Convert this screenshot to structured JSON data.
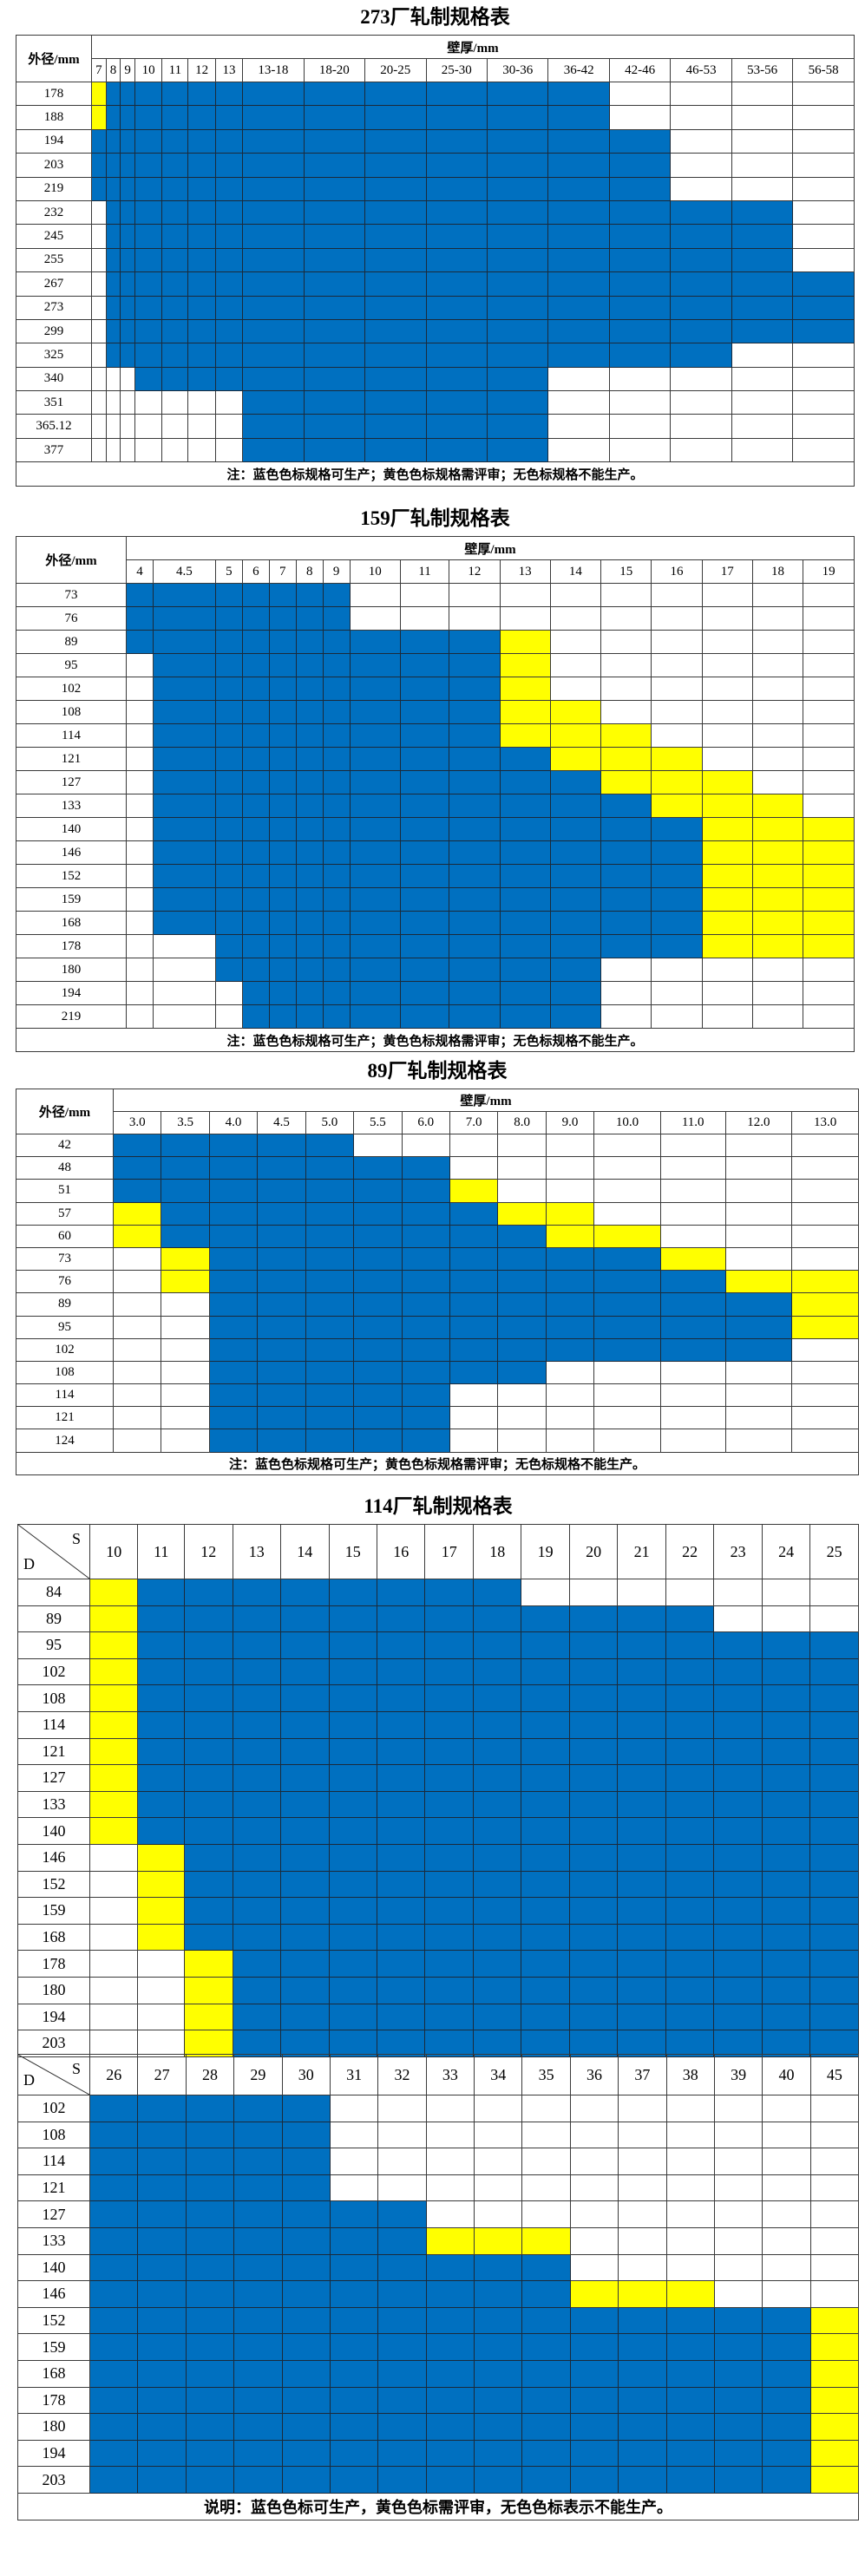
{
  "legend": {
    "B": "#0070C0",
    "Y": "#FFFF00",
    "W": "#FFFFFF"
  },
  "tables": [
    {
      "title": "273厂轧制规格表",
      "od_label": "外径/mm",
      "wt_label": "壁厚/mm",
      "columns": [
        "7",
        "8",
        "9",
        "10",
        "11",
        "12",
        "13",
        "13-18",
        "18-20",
        "20-25",
        "25-30",
        "30-36",
        "36-42",
        "42-46",
        "46-53",
        "53-56",
        "56-58"
      ],
      "rows": [
        {
          "od": "178",
          "cells": "YBBBBBBBBBBBBWWWW"
        },
        {
          "od": "188",
          "cells": "YBBBBBBBBBBBBWWWW"
        },
        {
          "od": "194",
          "cells": "BBBBBBBBBBBBBBWWW"
        },
        {
          "od": "203",
          "cells": "BBBBBBBBBBBBBBWWW"
        },
        {
          "od": "219",
          "cells": "BBBBBBBBBBBBBBWWW"
        },
        {
          "od": "232",
          "cells": "WBBBBBBBBBBBBBBBW"
        },
        {
          "od": "245",
          "cells": "WBBBBBBBBBBBBBBBW"
        },
        {
          "od": "255",
          "cells": "WBBBBBBBBBBBBBBBW"
        },
        {
          "od": "267",
          "cells": "WBBBBBBBBBBBBBBBB"
        },
        {
          "od": "273",
          "cells": "WBBBBBBBBBBBBBBBB"
        },
        {
          "od": "299",
          "cells": "WBBBBBBBBBBBBBBBB"
        },
        {
          "od": "325",
          "cells": "WBBBBBBBBBBBBBBWW"
        },
        {
          "od": "340",
          "cells": "WWWBBBBBBBBBWWWWW"
        },
        {
          "od": "351",
          "cells": "WWWWWWWBBBBBWWWWW"
        },
        {
          "od": "365.12",
          "cells": "WWWWWWWBBBBBWWWWW"
        },
        {
          "od": "377",
          "cells": "WWWWWWWBBBBBWWWWW"
        }
      ],
      "note": "注：蓝色色标规格可生产；黄色色标规格需评审；无色标规格不能生产。"
    },
    {
      "title": "159厂轧制规格表",
      "od_label": "外径/mm",
      "wt_label": "壁厚/mm",
      "columns": [
        "4",
        "4.5",
        "5",
        "6",
        "7",
        "8",
        "9",
        "10",
        "11",
        "12",
        "13",
        "14",
        "15",
        "16",
        "17",
        "18",
        "19"
      ],
      "rows": [
        {
          "od": "73",
          "cells": "BBBBBBBWWWWWWWWWW"
        },
        {
          "od": "76",
          "cells": "BBBBBBBWWWWWWWWWW"
        },
        {
          "od": "89",
          "cells": "BBBBBBBBBBYWWWWWW"
        },
        {
          "od": "95",
          "cells": "WBBBBBBBBBYWWWWWW"
        },
        {
          "od": "102",
          "cells": "WBBBBBBBBBYWWWWWW"
        },
        {
          "od": "108",
          "cells": "WBBBBBBBBBYYWWWWW"
        },
        {
          "od": "114",
          "cells": "WBBBBBBBBBYYYWWWW"
        },
        {
          "od": "121",
          "cells": "WBBBBBBBBBBYYYWWW"
        },
        {
          "od": "127",
          "cells": "WBBBBBBBBBBBYYYWW"
        },
        {
          "od": "133",
          "cells": "WBBBBBBBBBBBBYYYW"
        },
        {
          "od": "140",
          "cells": "WBBBBBBBBBBBBBYYY"
        },
        {
          "od": "146",
          "cells": "WBBBBBBBBBBBBBYYY"
        },
        {
          "od": "152",
          "cells": "WBBBBBBBBBBBBBYYY"
        },
        {
          "od": "159",
          "cells": "WBBBBBBBBBBBBBYYY"
        },
        {
          "od": "168",
          "cells": "WBBBBBBBBBBBBBYYY"
        },
        {
          "od": "178",
          "cells": "WWBBBBBBBBBBBBYYY"
        },
        {
          "od": "180",
          "cells": "WWBBBBBBBBBBWWWWW"
        },
        {
          "od": "194",
          "cells": "WWWBBBBBBBBBWWWWW"
        },
        {
          "od": "219",
          "cells": "WWWBBBBBBBBBWWWWW"
        }
      ],
      "note": "注：蓝色色标规格可生产；黄色色标规格需评审；无色标规格不能生产。"
    },
    {
      "title": "89厂轧制规格表",
      "od_label": "外径/mm",
      "wt_label": "壁厚/mm",
      "columns": [
        "3.0",
        "3.5",
        "4.0",
        "4.5",
        "5.0",
        "5.5",
        "6.0",
        "7.0",
        "8.0",
        "9.0",
        "10.0",
        "11.0",
        "12.0",
        "13.0"
      ],
      "rows": [
        {
          "od": "42",
          "cells": "BBBBBWWWWWWWWW"
        },
        {
          "od": "48",
          "cells": "BBBBBBBWWWWWWW"
        },
        {
          "od": "51",
          "cells": "BBBBBBBYWWWWWW"
        },
        {
          "od": "57",
          "cells": "YBBBBBBBYYWWWW"
        },
        {
          "od": "60",
          "cells": "YBBBBBBBBYYWWW"
        },
        {
          "od": "73",
          "cells": "WYBBBBBBBBBYWW"
        },
        {
          "od": "76",
          "cells": "WYBBBBBBBBBBYY"
        },
        {
          "od": "89",
          "cells": "WWBBBBBBBBBBBY"
        },
        {
          "od": "95",
          "cells": "WWBBBBBBBBBBBY"
        },
        {
          "od": "102",
          "cells": "WWBBBBBBBBBBBW"
        },
        {
          "od": "108",
          "cells": "WWBBBBBBBWWWWW"
        },
        {
          "od": "114",
          "cells": "WWBBBBBWWWWWWW"
        },
        {
          "od": "121",
          "cells": "WWBBBBBWWWWWWW"
        },
        {
          "od": "124",
          "cells": "WWBBBBBWWWWWWW"
        }
      ],
      "note": "注：蓝色色标规格可生产；黄色色标规格需评审；无色标规格不能生产。"
    },
    {
      "title": "114厂轧制规格表",
      "corner_s": "S",
      "corner_d": "D",
      "columns": [
        "10",
        "11",
        "12",
        "13",
        "14",
        "15",
        "16",
        "17",
        "18",
        "19",
        "20",
        "21",
        "22",
        "23",
        "24",
        "25"
      ],
      "rows": [
        {
          "od": "84",
          "cells": "YBBBBBBBBWWWWWWW"
        },
        {
          "od": "89",
          "cells": "YBBBBBBBBBBBBWWW"
        },
        {
          "od": "95",
          "cells": "YBBBBBBBBBBBBBBB"
        },
        {
          "od": "102",
          "cells": "YBBBBBBBBBBBBBBB"
        },
        {
          "od": "108",
          "cells": "YBBBBBBBBBBBBBBB"
        },
        {
          "od": "114",
          "cells": "YBBBBBBBBBBBBBBB"
        },
        {
          "od": "121",
          "cells": "YBBBBBBBBBBBBBBB"
        },
        {
          "od": "127",
          "cells": "YBBBBBBBBBBBBBBB"
        },
        {
          "od": "133",
          "cells": "YBBBBBBBBBBBBBBB"
        },
        {
          "od": "140",
          "cells": "YBBBBBBBBBBBBBBB"
        },
        {
          "od": "146",
          "cells": "WYBBBBBBBBBBBBBB"
        },
        {
          "od": "152",
          "cells": "WYBBBBBBBBBBBBBB"
        },
        {
          "od": "159",
          "cells": "WYBBBBBBBBBBBBBB"
        },
        {
          "od": "168",
          "cells": "WYBBBBBBBBBBBBBB"
        },
        {
          "od": "178",
          "cells": "WWYBBBBBBBBBBBBB"
        },
        {
          "od": "180",
          "cells": "WWYBBBBBBBBBBBBB"
        },
        {
          "od": "194",
          "cells": "WWYBBBBBBBBBBBBB"
        },
        {
          "od": "203",
          "cells": "WWYBBBBBBBBBBBBB"
        }
      ]
    },
    {
      "corner_s": "S",
      "corner_d": "D",
      "columns": [
        "26",
        "27",
        "28",
        "29",
        "30",
        "31",
        "32",
        "33",
        "34",
        "35",
        "36",
        "37",
        "38",
        "39",
        "40",
        "45"
      ],
      "rows": [
        {
          "od": "102",
          "cells": "BBBBBWWWWWWWWWWW"
        },
        {
          "od": "108",
          "cells": "BBBBBWWWWWWWWWWW"
        },
        {
          "od": "114",
          "cells": "BBBBBWWWWWWWWWWW"
        },
        {
          "od": "121",
          "cells": "BBBBBWWWWWWWWWWW"
        },
        {
          "od": "127",
          "cells": "BBBBBBBWWWWWWWWW"
        },
        {
          "od": "133",
          "cells": "BBBBBBBYYYWWWWWW"
        },
        {
          "od": "140",
          "cells": "BBBBBBBBBBWWWWWW"
        },
        {
          "od": "146",
          "cells": "BBBBBBBBBBYYYWWW"
        },
        {
          "od": "152",
          "cells": "BBBBBBBBBBBBBBBY"
        },
        {
          "od": "159",
          "cells": "BBBBBBBBBBBBBBBY"
        },
        {
          "od": "168",
          "cells": "BBBBBBBBBBBBBBBY"
        },
        {
          "od": "178",
          "cells": "BBBBBBBBBBBBBBBY"
        },
        {
          "od": "180",
          "cells": "BBBBBBBBBBBBBBBY"
        },
        {
          "od": "194",
          "cells": "BBBBBBBBBBBBBBBY"
        },
        {
          "od": "203",
          "cells": "BBBBBBBBBBBBBBBY"
        }
      ],
      "note": "说明：蓝色色标可生产，黄色色标需评审，无色色标表示不能生产。"
    }
  ]
}
